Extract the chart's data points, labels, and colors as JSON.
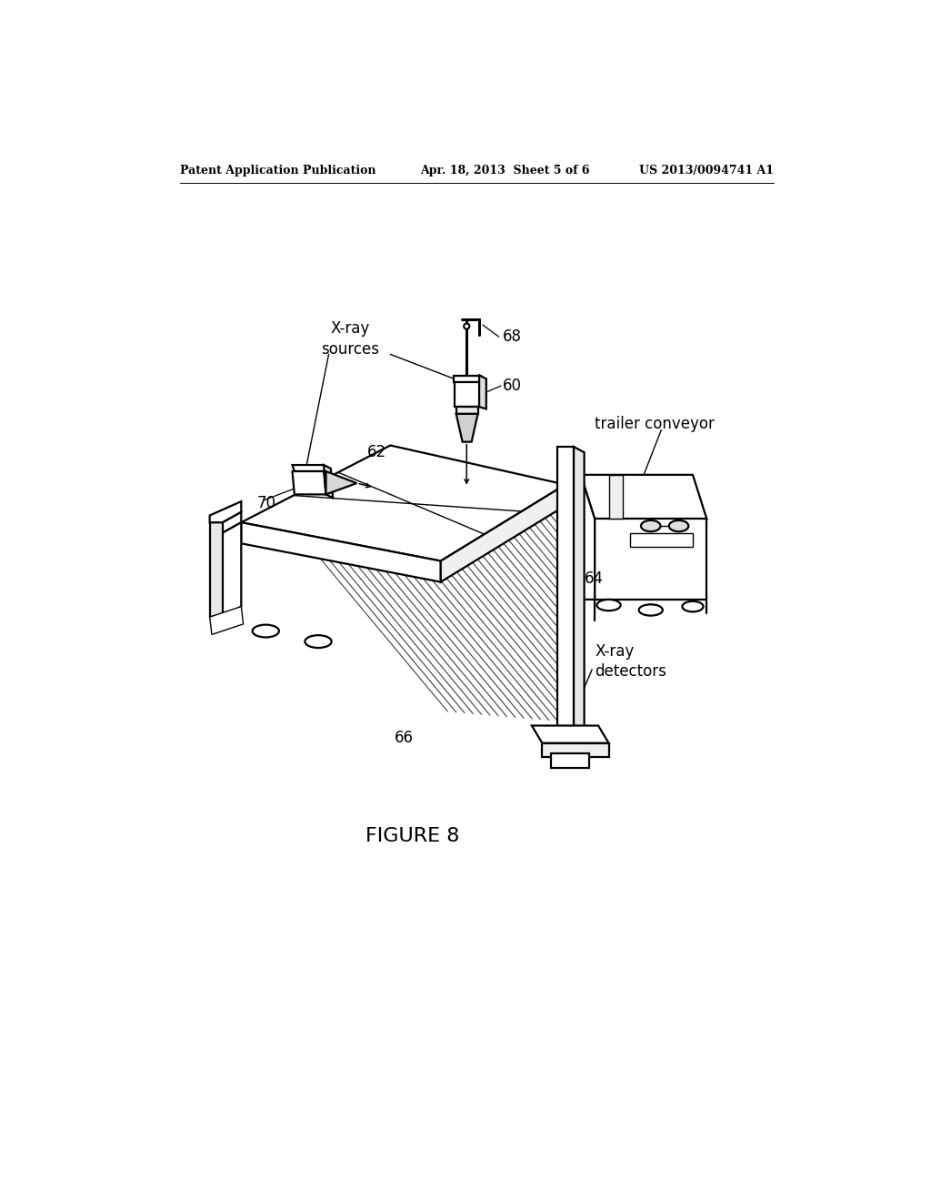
{
  "bg_color": "#ffffff",
  "header_left": "Patent Application Publication",
  "header_center": "Apr. 18, 2013  Sheet 5 of 6",
  "header_right": "US 2013/0094741 A1",
  "figure_label": "FIGURE 8",
  "label_xray_sources": "X-ray\nsources",
  "label_trailer_conveyor": "trailer conveyor",
  "label_xray_detectors": "X-ray\ndetectors",
  "ref_60": "60",
  "ref_62": "62",
  "ref_64": "64",
  "ref_66": "66",
  "ref_68": "68",
  "ref_70": "70"
}
